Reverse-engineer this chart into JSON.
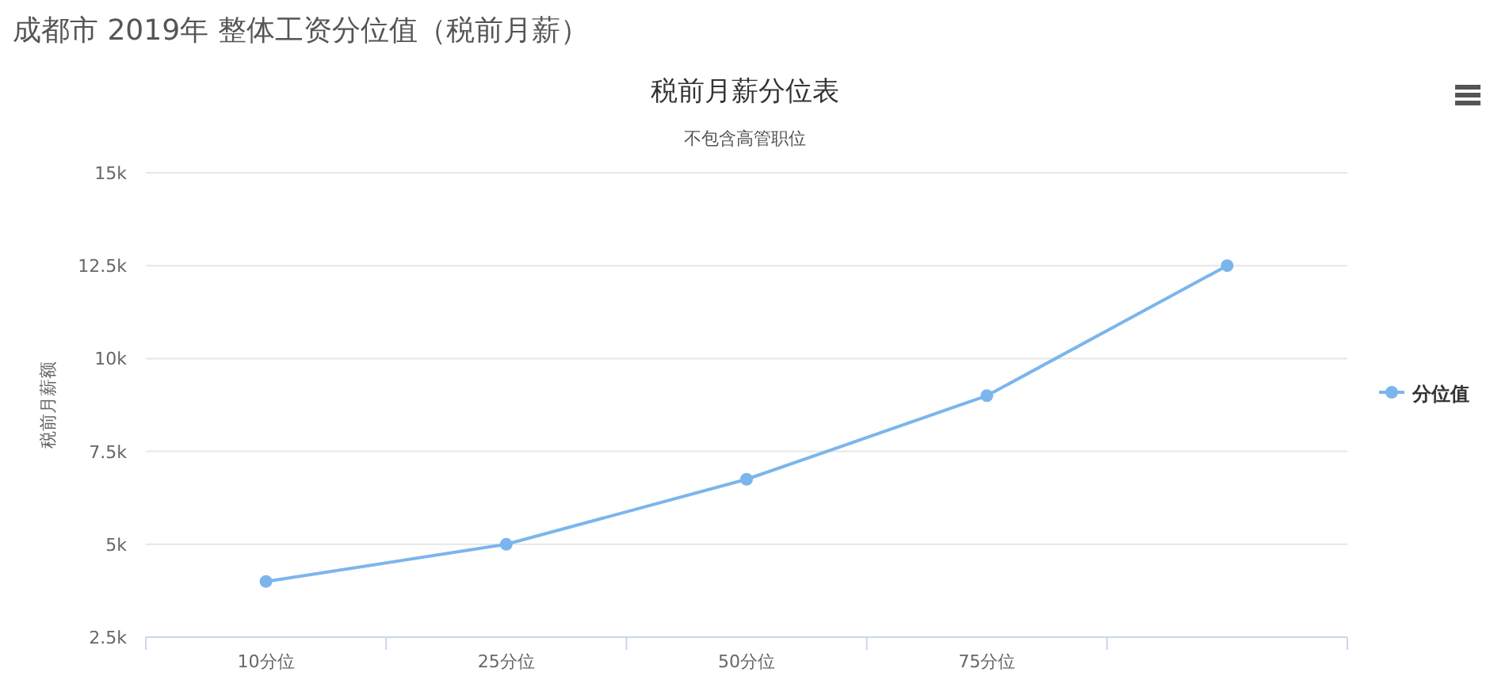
{
  "chart_data": {
    "type": "line",
    "title": "税前月薪分位表",
    "subtitle": "不包含高管职位",
    "ylabel": "税前月薪额",
    "annotations": [
      "成都市 2019年 整体工资分位值（税前月薪）"
    ],
    "categories": [
      "10分位",
      "25分位",
      "50分位",
      "75分位",
      null
    ],
    "series": [
      {
        "name": "分位值",
        "color": "#7cb5ec",
        "values": [
          4000,
          5000,
          6750,
          9000,
          12500
        ]
      }
    ],
    "ylim": [
      2500,
      15000
    ],
    "yticks": [
      {
        "value": 2500,
        "label": "2.5k"
      },
      {
        "value": 5000,
        "label": "5k"
      },
      {
        "value": 7500,
        "label": "7.5k"
      },
      {
        "value": 10000,
        "label": "10k"
      },
      {
        "value": 12500,
        "label": "12.5k"
      },
      {
        "value": 15000,
        "label": "15k"
      }
    ],
    "grid": "y",
    "legend": "right",
    "marker": "circle",
    "line_style": "solid"
  }
}
